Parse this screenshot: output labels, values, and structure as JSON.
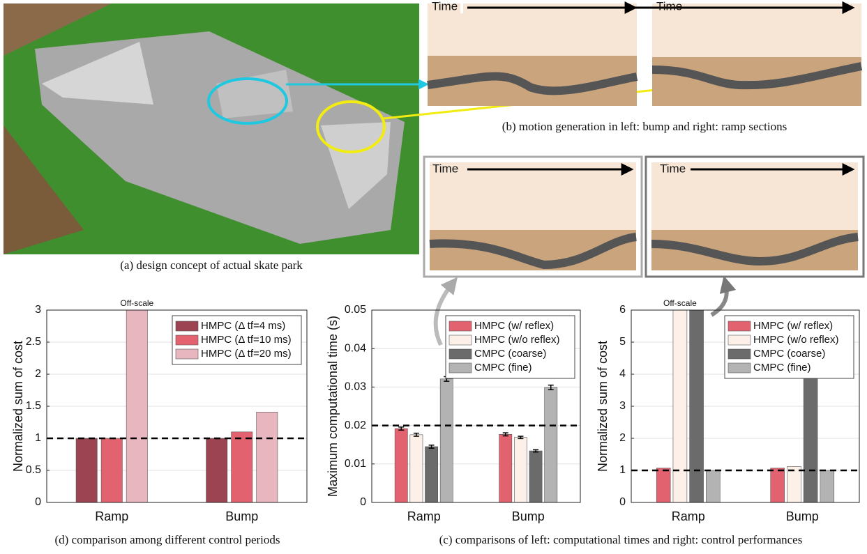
{
  "captions": {
    "a": "(a)  design concept of actual skate park",
    "b": "(b) motion generation in left: bump and right: ramp sections",
    "c": "(c) comparisons of left: computational times and right: control performances",
    "d": "(d) comparison among different control periods"
  },
  "time_labels": [
    "Time",
    "Time",
    "Time",
    "Time"
  ],
  "chart_data": [
    {
      "type": "bar",
      "ylabel": "Normalized sum of cost",
      "categories": [
        "Ramp",
        "Bump"
      ],
      "series": [
        {
          "name": "HMPC (Δ tf=4 ms)",
          "color": "#9c4452",
          "values": [
            1.0,
            1.0
          ]
        },
        {
          "name": "HMPC (Δ tf=10 ms)",
          "color": "#e2626f",
          "values": [
            1.0,
            1.1
          ]
        },
        {
          "name": "HMPC (Δ tf=20 ms)",
          "color": "#e8b6be",
          "values": [
            3,
            1.41
          ]
        }
      ],
      "ylim": [
        0,
        3
      ],
      "yticks": [
        0,
        0.5,
        1,
        1.5,
        2,
        2.5,
        3
      ],
      "reference_line": 1,
      "annotation": "Off-scale",
      "grid": true,
      "legend": "upper right"
    },
    {
      "type": "bar",
      "ylabel": "Maximum computational time (s)",
      "categories": [
        "Ramp",
        "Bump"
      ],
      "series": [
        {
          "name": "HMPC (w/ reflex)",
          "color": "#e2626f",
          "values": [
            0.0192,
            0.0177
          ],
          "errors": [
            0.0004,
            0.0004
          ]
        },
        {
          "name": "HMPC (w/o reflex)",
          "color": "#fdf0e8",
          "values": [
            0.0176,
            0.0169
          ],
          "errors": [
            0.0004,
            0.0003
          ]
        },
        {
          "name": "CMPC (coarse)",
          "color": "#6b6b6b",
          "values": [
            0.0145,
            0.0134
          ],
          "errors": [
            0.0004,
            0.0003
          ]
        },
        {
          "name": "CMPC (fine)",
          "color": "#b3b3b3",
          "values": [
            0.0321,
            0.0299
          ],
          "errors": [
            0.0006,
            0.0006
          ]
        }
      ],
      "ylim": [
        0,
        0.05
      ],
      "yticks": [
        0,
        0.01,
        0.02,
        0.03,
        0.04,
        0.05
      ],
      "reference_line": 0.02,
      "grid": true,
      "legend": "upper right"
    },
    {
      "type": "bar",
      "ylabel": "Normalized sum of cost",
      "categories": [
        "Ramp",
        "Bump"
      ],
      "series": [
        {
          "name": "HMPC (w/ reflex)",
          "color": "#e2626f",
          "values": [
            1.07,
            1.07
          ]
        },
        {
          "name": "HMPC (w/o reflex)",
          "color": "#fdf0e8",
          "values": [
            6,
            1.12
          ]
        },
        {
          "name": "CMPC (coarse)",
          "color": "#6b6b6b",
          "values": [
            6,
            4.03
          ]
        },
        {
          "name": "CMPC (fine)",
          "color": "#b3b3b3",
          "values": [
            1.0,
            1.0
          ]
        }
      ],
      "ylim": [
        0,
        6
      ],
      "yticks": [
        0,
        1,
        2,
        3,
        4,
        5,
        6
      ],
      "reference_line": 1,
      "annotation": "Off-scale",
      "grid": true,
      "legend": "upper right"
    }
  ]
}
